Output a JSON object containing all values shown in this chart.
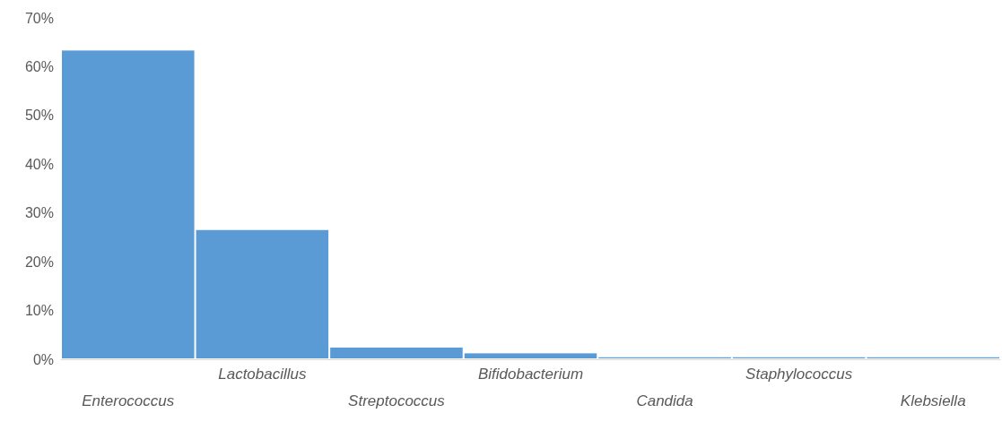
{
  "chart_data": {
    "type": "bar",
    "categories": [
      "Enterococcus",
      "Lactobacillus",
      "Streptococcus",
      "Bifidobacterium",
      "Candida",
      "Staphylococcus",
      "Klebsiella"
    ],
    "values": [
      63.5,
      26.7,
      2.6,
      1.4,
      0.6,
      0.6,
      0.6
    ],
    "color": "#5b9bd5",
    "ylim": [
      0,
      70
    ],
    "yticks": [
      {
        "value": 0,
        "label": "0%"
      },
      {
        "value": 10,
        "label": "10%"
      },
      {
        "value": 20,
        "label": "20%"
      },
      {
        "value": 30,
        "label": "30%"
      },
      {
        "value": 40,
        "label": "40%"
      },
      {
        "value": 50,
        "label": "50%"
      },
      {
        "value": 60,
        "label": "60%"
      },
      {
        "value": 70,
        "label": "70%"
      }
    ],
    "grid": false
  }
}
